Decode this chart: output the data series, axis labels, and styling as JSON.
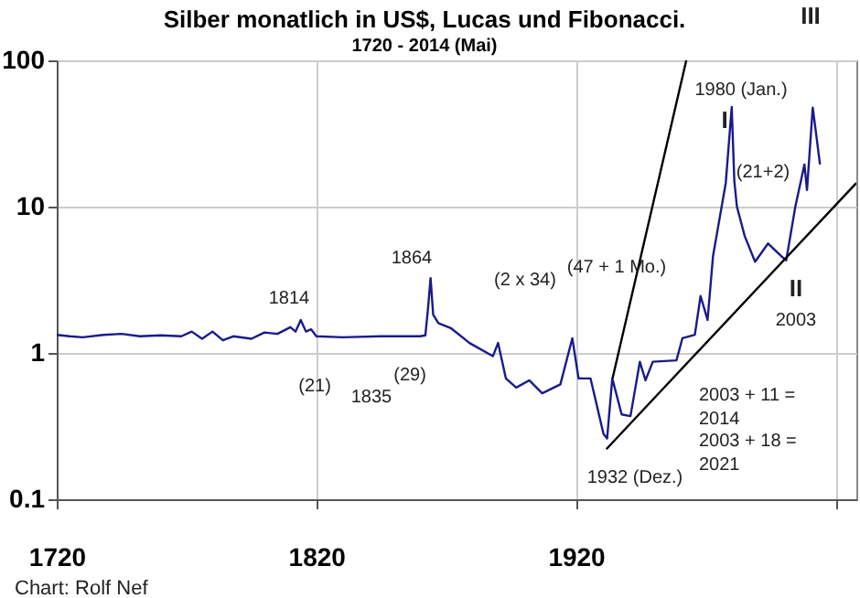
{
  "chart_data": {
    "type": "line",
    "title": "Silber monatlich in US$, Lucas und Fibonacci.",
    "subtitle": "1720  - 2014 (Mai)",
    "series": [
      {
        "color": "#1a1a8c",
        "x": [
          1720,
          1725,
          1730,
          1738,
          1745,
          1752,
          1760,
          1768,
          1772,
          1776,
          1780,
          1784,
          1788,
          1795,
          1800,
          1805,
          1810,
          1812,
          1814,
          1816,
          1818,
          1820,
          1830,
          1845,
          1860,
          1862,
          1863,
          1864,
          1865,
          1867,
          1872,
          1879,
          1888,
          1890,
          1893,
          1897,
          1902,
          1907,
          1914,
          1918.6,
          1921,
          1925.6,
          1930.6,
          1932,
          1934,
          1937.6,
          1941,
          1944.6,
          1946.8,
          1949.6,
          1958.7,
          1961,
          1965.8,
          1968,
          1970.7,
          1972.8,
          1977.7,
          1980,
          1981,
          1982,
          1985,
          1989,
          1994,
          1999,
          2001,
          2004.5,
          2008,
          2009,
          2011.2,
          2012.5,
          2014
        ],
        "values": [
          1.33,
          1.3,
          1.28,
          1.33,
          1.35,
          1.3,
          1.32,
          1.3,
          1.4,
          1.25,
          1.4,
          1.22,
          1.3,
          1.25,
          1.38,
          1.35,
          1.5,
          1.4,
          1.68,
          1.4,
          1.45,
          1.3,
          1.28,
          1.3,
          1.3,
          1.32,
          2.0,
          3.25,
          1.83,
          1.6,
          1.47,
          1.17,
          0.95,
          1.17,
          0.67,
          0.58,
          0.65,
          0.53,
          0.61,
          1.26,
          0.67,
          0.67,
          0.28,
          0.26,
          0.67,
          0.38,
          0.37,
          0.87,
          0.65,
          0.87,
          0.89,
          1.26,
          1.33,
          2.45,
          1.68,
          4.6,
          14.5,
          48,
          15,
          10,
          6.3,
          4.2,
          5.6,
          4.6,
          4.3,
          10,
          19.4,
          13,
          47.5,
          31.6,
          19.4
        ]
      },
      {
        "type": "line",
        "color": "#000000",
        "x": [
          1934.1,
          1962.5
        ],
        "values": [
          0.67,
          100
        ]
      },
      {
        "type": "line",
        "color": "#000000",
        "x": [
          1931.7,
          2028
        ],
        "values": [
          0.22,
          14.5
        ]
      }
    ],
    "xlim": [
      1720,
      2028
    ],
    "xticks": [
      1720,
      1820,
      1920,
      {
        "value": 2020,
        "label": null
      }
    ],
    "ylim": [
      0.1,
      100
    ],
    "yticks": [
      0.1,
      1,
      10,
      100
    ],
    "log": true,
    "grid": true,
    "annotations": [
      "1814",
      "(21)",
      "1835",
      "(29)",
      "1864",
      "(2 x 34)",
      "(47 + 1 Mo.)",
      "1932 (Dez.)",
      "1980 (Jan.)",
      "I",
      "(21+2)",
      "II",
      "2003",
      "III",
      "2003 + 11 =",
      "2014",
      "2003 + 18 =",
      "2021",
      "Chart: Rolf Nef"
    ]
  }
}
